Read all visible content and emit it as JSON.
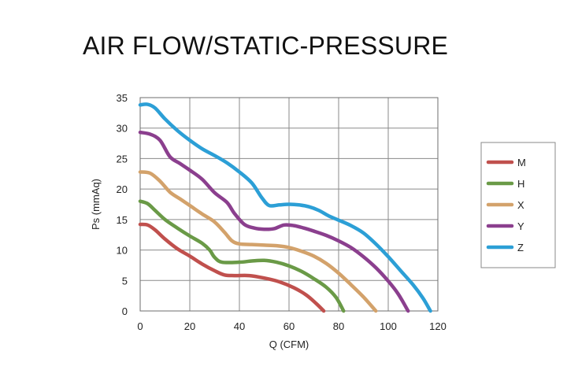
{
  "chart_data": {
    "type": "line",
    "title": "AIR FLOW/STATIC-PRESSURE",
    "xlabel": "Q (CFM)",
    "ylabel": "Ps (mmAq)",
    "xlim": [
      0,
      120
    ],
    "ylim": [
      0,
      35
    ],
    "xticks": [
      0,
      20,
      40,
      60,
      80,
      100,
      120
    ],
    "yticks": [
      0,
      5,
      10,
      15,
      20,
      25,
      30,
      35
    ],
    "grid": true,
    "legend_position": "right",
    "series": [
      {
        "name": "M",
        "color": "#c0504d",
        "points": [
          [
            0,
            14.2
          ],
          [
            3,
            14.1
          ],
          [
            6,
            13.3
          ],
          [
            10,
            11.8
          ],
          [
            15,
            10.2
          ],
          [
            20,
            9.0
          ],
          [
            25,
            7.7
          ],
          [
            30,
            6.6
          ],
          [
            34,
            5.9
          ],
          [
            38,
            5.8
          ],
          [
            44,
            5.8
          ],
          [
            50,
            5.4
          ],
          [
            56,
            4.8
          ],
          [
            62,
            3.8
          ],
          [
            67,
            2.6
          ],
          [
            71,
            1.2
          ],
          [
            74,
            0
          ]
        ]
      },
      {
        "name": "H",
        "color": "#6a9a47",
        "points": [
          [
            0,
            18.0
          ],
          [
            3,
            17.6
          ],
          [
            6,
            16.5
          ],
          [
            10,
            15.0
          ],
          [
            15,
            13.6
          ],
          [
            20,
            12.3
          ],
          [
            25,
            11.1
          ],
          [
            28,
            10.0
          ],
          [
            30,
            8.8
          ],
          [
            33,
            8.0
          ],
          [
            40,
            8.0
          ],
          [
            45,
            8.2
          ],
          [
            50,
            8.3
          ],
          [
            55,
            8.0
          ],
          [
            60,
            7.4
          ],
          [
            65,
            6.5
          ],
          [
            70,
            5.3
          ],
          [
            75,
            3.9
          ],
          [
            79,
            2.2
          ],
          [
            82,
            0
          ]
        ]
      },
      {
        "name": "X",
        "color": "#d3a26b",
        "points": [
          [
            0,
            22.8
          ],
          [
            4,
            22.6
          ],
          [
            8,
            21.3
          ],
          [
            12,
            19.5
          ],
          [
            16,
            18.4
          ],
          [
            20,
            17.3
          ],
          [
            25,
            15.9
          ],
          [
            30,
            14.6
          ],
          [
            34,
            12.9
          ],
          [
            37,
            11.5
          ],
          [
            40,
            11.0
          ],
          [
            45,
            10.9
          ],
          [
            50,
            10.8
          ],
          [
            55,
            10.7
          ],
          [
            60,
            10.4
          ],
          [
            65,
            9.8
          ],
          [
            70,
            9.0
          ],
          [
            75,
            7.8
          ],
          [
            80,
            6.2
          ],
          [
            85,
            4.3
          ],
          [
            90,
            2.3
          ],
          [
            95,
            0
          ]
        ]
      },
      {
        "name": "Y",
        "color": "#8b3f8e",
        "points": [
          [
            0,
            29.3
          ],
          [
            4,
            29.0
          ],
          [
            8,
            28.0
          ],
          [
            12,
            25.3
          ],
          [
            16,
            24.2
          ],
          [
            20,
            23.1
          ],
          [
            25,
            21.6
          ],
          [
            30,
            19.4
          ],
          [
            35,
            17.8
          ],
          [
            38,
            16.0
          ],
          [
            42,
            14.2
          ],
          [
            46,
            13.6
          ],
          [
            50,
            13.4
          ],
          [
            54,
            13.5
          ],
          [
            58,
            14.1
          ],
          [
            62,
            14.0
          ],
          [
            66,
            13.6
          ],
          [
            70,
            13.1
          ],
          [
            75,
            12.4
          ],
          [
            80,
            11.5
          ],
          [
            85,
            10.4
          ],
          [
            90,
            8.9
          ],
          [
            95,
            7.1
          ],
          [
            100,
            4.9
          ],
          [
            104,
            2.8
          ],
          [
            108,
            0
          ]
        ]
      },
      {
        "name": "Z",
        "color": "#2c9fd6",
        "points": [
          [
            0,
            33.8
          ],
          [
            3,
            33.9
          ],
          [
            6,
            33.3
          ],
          [
            10,
            31.5
          ],
          [
            15,
            29.6
          ],
          [
            20,
            28.0
          ],
          [
            25,
            26.6
          ],
          [
            30,
            25.5
          ],
          [
            35,
            24.3
          ],
          [
            40,
            22.8
          ],
          [
            45,
            21.0
          ],
          [
            49,
            18.6
          ],
          [
            52,
            17.3
          ],
          [
            56,
            17.4
          ],
          [
            60,
            17.5
          ],
          [
            64,
            17.4
          ],
          [
            68,
            17.1
          ],
          [
            72,
            16.5
          ],
          [
            76,
            15.6
          ],
          [
            80,
            14.9
          ],
          [
            85,
            14.0
          ],
          [
            90,
            12.8
          ],
          [
            95,
            11.0
          ],
          [
            100,
            8.9
          ],
          [
            105,
            6.6
          ],
          [
            110,
            4.3
          ],
          [
            114,
            2.1
          ],
          [
            117,
            0
          ]
        ]
      }
    ]
  }
}
